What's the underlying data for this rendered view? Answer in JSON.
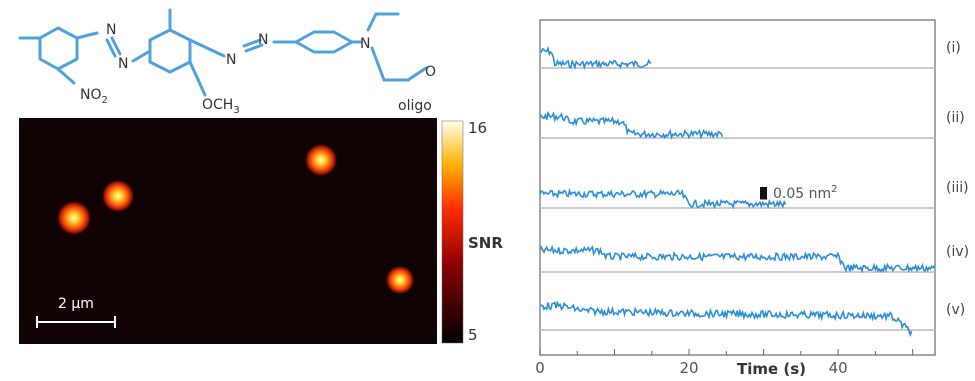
{
  "molecule": {
    "atom_labels": [
      "N",
      "N",
      "NO2",
      "N",
      "N",
      "OCH3",
      "N",
      "O",
      "oligo"
    ],
    "bond_color": "#4fa3dc",
    "atom_color": "#333333"
  },
  "image_panel": {
    "scale_bar_label": "2 μm",
    "colorbar_label": "SNR",
    "colorbar_max_label": "16",
    "colorbar_min_label": "5",
    "background_color": "#100303",
    "spot_colors": [
      "#ffffc0",
      "#ffd02a",
      "#ff5a10",
      "#a01604"
    ]
  },
  "chart_data": {
    "type": "line",
    "xlabel": "Time (s)",
    "xlim": [
      0,
      53
    ],
    "xticks": [
      "0",
      "20",
      "40"
    ],
    "scale_bar_label": "0.05 nm",
    "scale_bar_label_sup": "2",
    "series_color": "#2b8fd8",
    "series": [
      {
        "name": "(i)",
        "x": [
          0,
          1.5,
          2,
          15
        ],
        "y": [
          0.05,
          0.05,
          0,
          0
        ]
      },
      {
        "name": "(ii)",
        "x": [
          0,
          3,
          4,
          11,
          12,
          24.5
        ],
        "y": [
          0.07,
          0.07,
          0.05,
          0.05,
          0,
          0
        ]
      },
      {
        "name": "(iii)",
        "x": [
          0,
          19,
          20,
          32,
          33
        ],
        "y": [
          0.04,
          0.04,
          0,
          0,
          -0.005
        ]
      },
      {
        "name": "(iv)",
        "x": [
          0,
          8,
          9,
          40,
          41,
          53
        ],
        "y": [
          0.07,
          0.07,
          0.045,
          0.045,
          0,
          0
        ]
      },
      {
        "name": "(v)",
        "x": [
          0,
          3,
          6,
          20,
          47,
          48,
          50
        ],
        "y": [
          0.08,
          0.08,
          0.06,
          0.05,
          0.04,
          0.02,
          -0.03
        ]
      }
    ]
  }
}
